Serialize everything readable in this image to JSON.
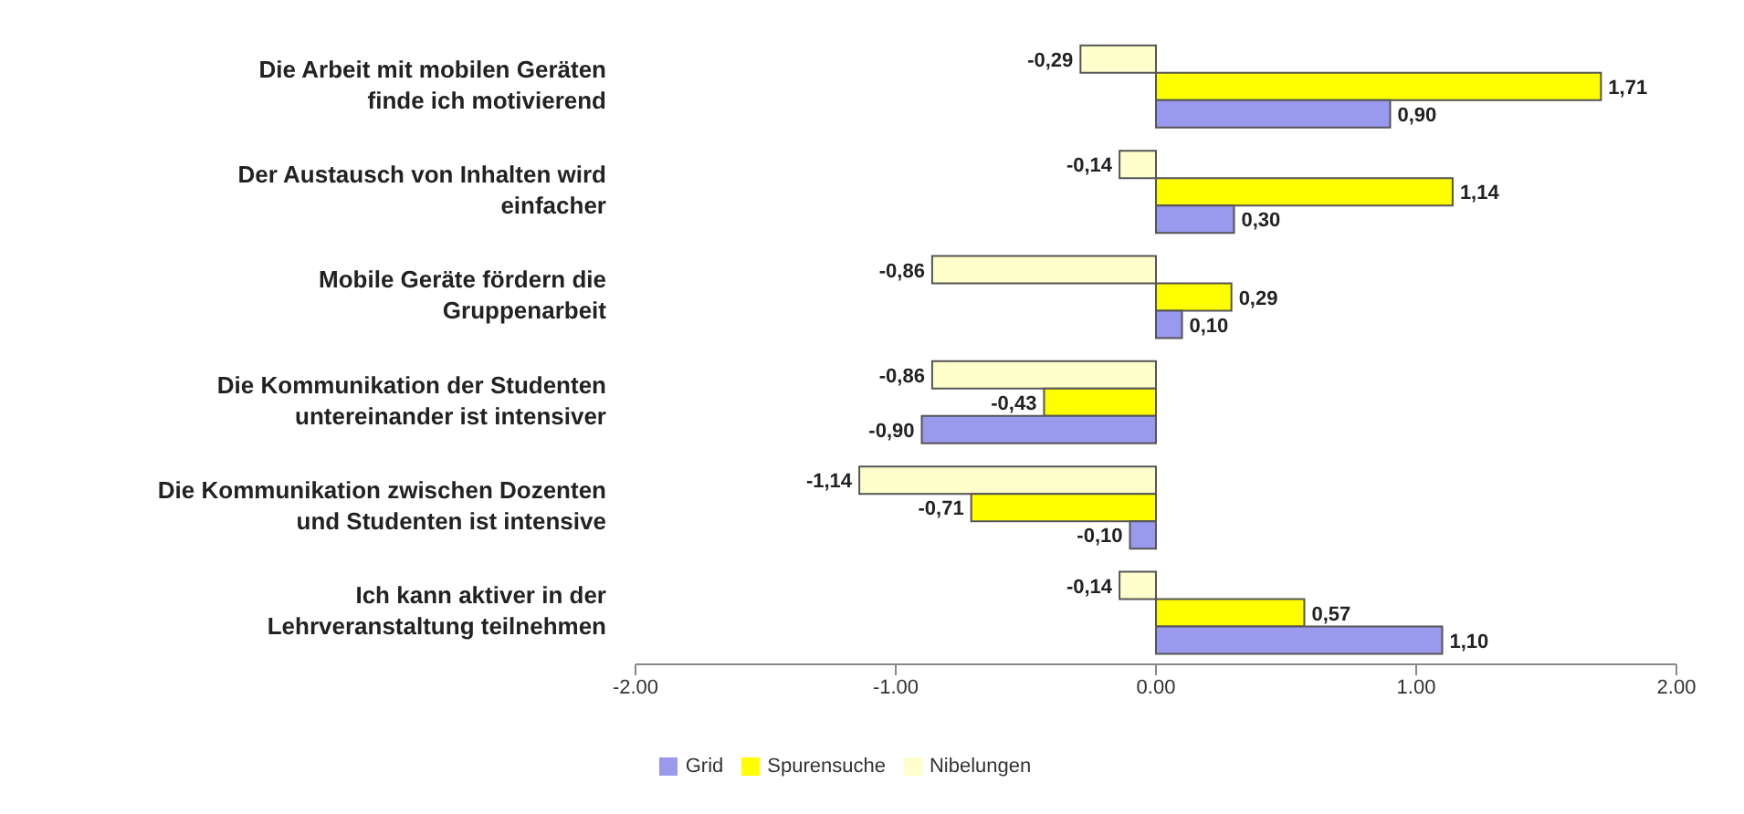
{
  "chart_data": {
    "type": "bar",
    "orientation": "horizontal",
    "categories": [
      "Die Arbeit mit mobilen Geräten finde ich motivierend",
      "Der Austausch von Inhalten wird einfacher",
      "Mobile Geräte fördern die Gruppenarbeit",
      "Die Kommunikation der Studenten untereinander ist intensiver",
      "Die Kommunikation zwischen Dozenten und Studenten ist intensive",
      "Ich kann aktiver in der Lehrveranstaltung teilnehmen"
    ],
    "series": [
      {
        "name": "Grid",
        "color": "#9999ee",
        "values": [
          0.9,
          0.3,
          0.1,
          -0.9,
          -0.1,
          1.1
        ],
        "value_labels": [
          "0,90",
          "0,30",
          "0,10",
          "-0,90",
          "-0,10",
          "1,10"
        ]
      },
      {
        "name": "Spurensuche",
        "color": "#ffff00",
        "values": [
          1.71,
          1.14,
          0.29,
          -0.43,
          -0.71,
          0.57
        ],
        "value_labels": [
          "1,71",
          "1,14",
          "0,29",
          "-0,43",
          "-0,71",
          "0,57"
        ]
      },
      {
        "name": "Nibelungen",
        "color": "#ffffcc",
        "values": [
          -0.29,
          -0.14,
          -0.86,
          -0.86,
          -1.14,
          -0.14
        ],
        "value_labels": [
          "-0,29",
          "-0,14",
          "-0,86",
          "-0,86",
          "-1,14",
          "-0,14"
        ]
      }
    ],
    "xlim": [
      -2,
      2
    ],
    "xticks": [
      {
        "value": -2,
        "label": "-2.00"
      },
      {
        "value": -1,
        "label": "-1.00"
      },
      {
        "value": 0,
        "label": "0.00"
      },
      {
        "value": 1,
        "label": "1.00"
      },
      {
        "value": 2,
        "label": "2.00"
      }
    ],
    "legend": "bottom",
    "grid": false
  }
}
